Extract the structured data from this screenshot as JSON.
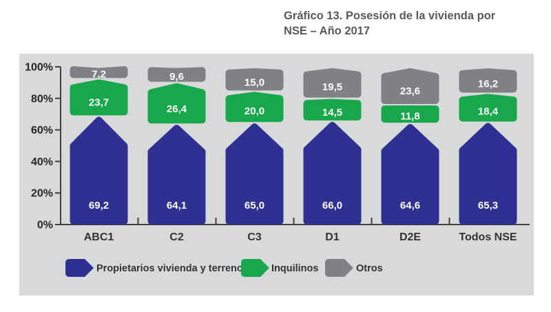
{
  "title": {
    "line1": "Gráfico 13. Posesión de la vivienda por",
    "line2": "NSE – Año 2017"
  },
  "colors": {
    "panel": "#d8d9da",
    "blue": "#2e3192",
    "green": "#18a84b",
    "gray": "#7f8184",
    "axis": "#3f4040",
    "category_text": "#333333",
    "tick_text": "#262626",
    "value_text": "#ffffff",
    "legend_text": "#333333",
    "title_text": "#58595b"
  },
  "chart_data": {
    "type": "bar",
    "stacked": true,
    "title": "Gráfico 13. Posesión de la vivienda por NSE – Año 2017",
    "categories": [
      "ABC1",
      "C2",
      "C3",
      "D1",
      "D2E",
      "Todos NSE"
    ],
    "series": [
      {
        "name": "Propietarios vivienda y terreno",
        "color_key": "blue",
        "values": [
          69.2,
          64.1,
          65.0,
          66.0,
          64.6,
          65.3
        ],
        "labels": [
          "69,2",
          "64,1",
          "65,0",
          "66,0",
          "64,6",
          "65,3"
        ]
      },
      {
        "name": "Inquilinos",
        "color_key": "green",
        "values": [
          23.7,
          26.4,
          20.0,
          14.5,
          11.8,
          18.4
        ],
        "labels": [
          "23,7",
          "26,4",
          "20,0",
          "14,5",
          "11,8",
          "18,4"
        ]
      },
      {
        "name": "Otros",
        "color_key": "gray",
        "values": [
          7.2,
          9.6,
          15.0,
          19.5,
          23.6,
          16.2
        ],
        "labels": [
          "7,2",
          "9,6",
          "15,0",
          "19,5",
          "23,6",
          "16,2"
        ]
      }
    ],
    "y_ticks": [
      "0%",
      "20%",
      "40%",
      "60%",
      "80%",
      "100%"
    ],
    "ylim": [
      0,
      100
    ],
    "grid": false,
    "legend_position": "bottom"
  }
}
